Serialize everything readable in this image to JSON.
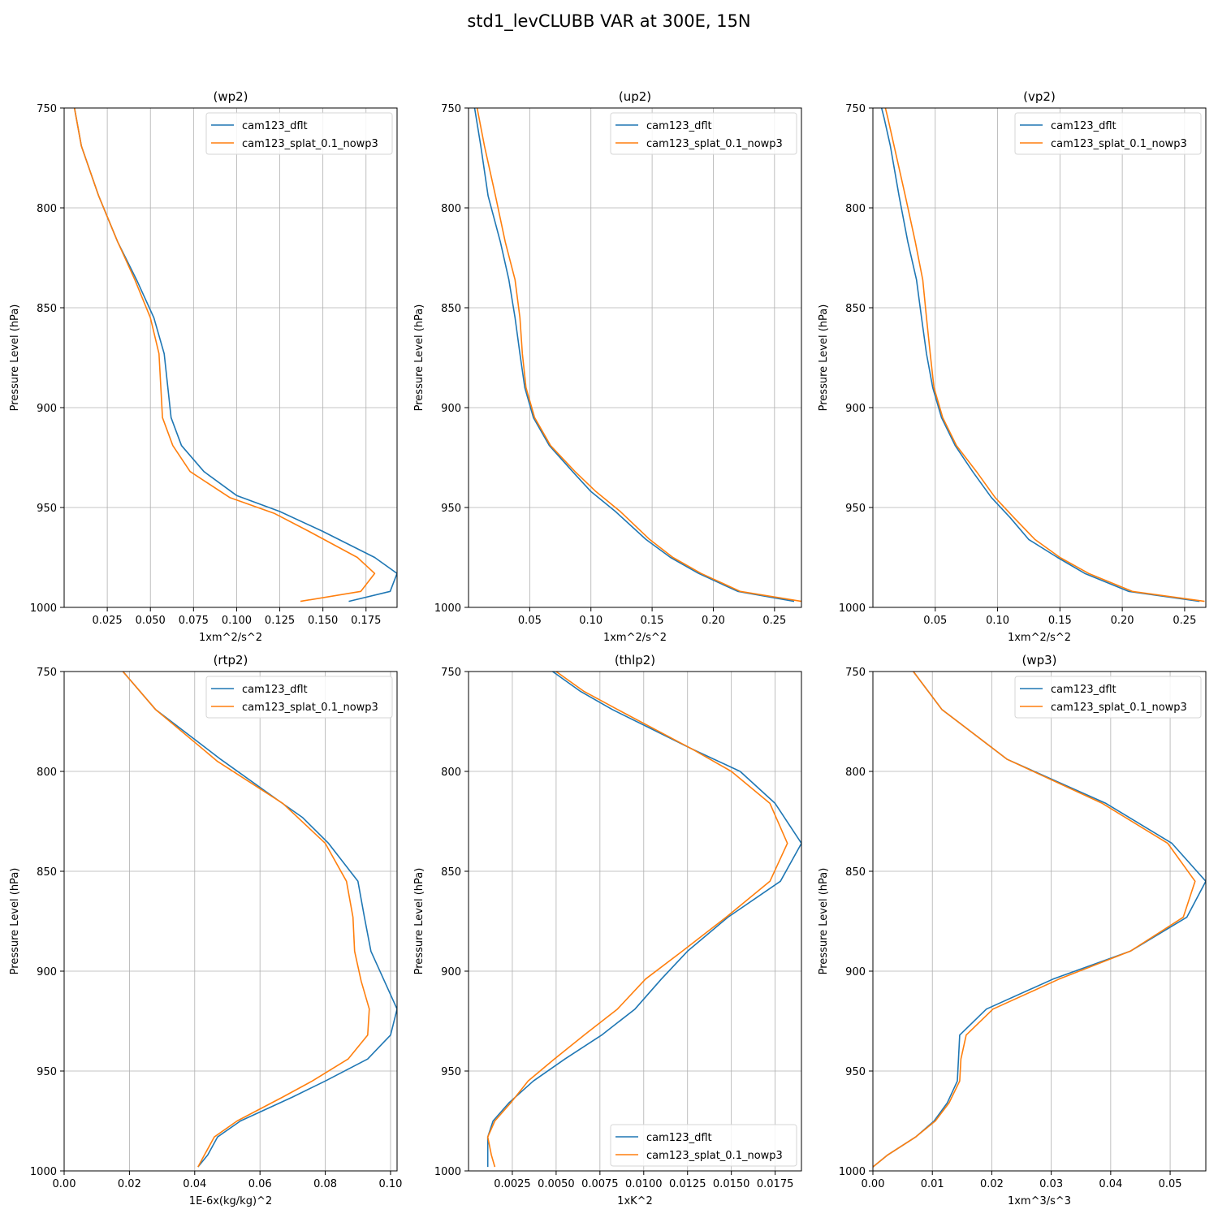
{
  "figure_title": "std1_levCLUBB VAR at 300E, 15N",
  "colors": {
    "cam123_dflt": "#1f77b4",
    "cam123_splat_0.1_nowp3": "#ff7f0e",
    "grid": "#b0b0b0"
  },
  "chart_data": [
    {
      "type": "line",
      "title": "(wp2)",
      "xlabel": "1xm^2/s^2",
      "ylabel": "Pressure Level (hPa)",
      "xlim": [
        0.0,
        0.193
      ],
      "ylim": [
        1000,
        750
      ],
      "xticks": [
        0.025,
        0.05,
        0.075,
        0.1,
        0.125,
        0.15,
        0.175
      ],
      "xtick_labels": [
        "0.025",
        "0.050",
        "0.075",
        "0.100",
        "0.125",
        "0.150",
        "0.175"
      ],
      "yticks": [
        750,
        800,
        850,
        900,
        950,
        1000
      ],
      "ytick_labels": [
        "750",
        "800",
        "850",
        "900",
        "950",
        "1000"
      ],
      "grid": true,
      "legend_position": "upper right",
      "series": [
        {
          "name": "cam123_dflt",
          "color": "#1f77b4",
          "x": [
            0.165,
            0.189,
            0.193,
            0.18,
            0.15,
            0.125,
            0.1,
            0.081,
            0.068,
            0.062,
            0.058,
            0.052,
            0.042,
            0.031,
            0.02,
            0.01,
            0.006
          ],
          "y": [
            997,
            992,
            983,
            975,
            962,
            952,
            944,
            932,
            919,
            905,
            873,
            855,
            836,
            817,
            794,
            769,
            750
          ]
        },
        {
          "name": "cam123_splat_0.1_nowp3",
          "color": "#ff7f0e",
          "x": [
            0.137,
            0.172,
            0.18,
            0.17,
            0.142,
            0.122,
            0.096,
            0.073,
            0.063,
            0.057,
            0.055,
            0.05,
            0.041,
            0.031,
            0.02,
            0.01,
            0.006
          ],
          "y": [
            997,
            992,
            983,
            975,
            962,
            953,
            945,
            932,
            919,
            905,
            873,
            855,
            836,
            817,
            794,
            769,
            750
          ]
        }
      ]
    },
    {
      "type": "line",
      "title": "(up2)",
      "xlabel": "1xm^2/s^2",
      "ylabel": "Pressure Level (hPa)",
      "xlim": [
        0.0,
        0.272
      ],
      "ylim": [
        1000,
        750
      ],
      "xticks": [
        0.05,
        0.1,
        0.15,
        0.2,
        0.25
      ],
      "xtick_labels": [
        "0.05",
        "0.10",
        "0.15",
        "0.20",
        "0.25"
      ],
      "yticks": [
        750,
        800,
        850,
        900,
        950,
        1000
      ],
      "ytick_labels": [
        "750",
        "800",
        "850",
        "900",
        "950",
        "1000"
      ],
      "grid": true,
      "legend_position": "upper right",
      "series": [
        {
          "name": "cam123_dflt",
          "color": "#1f77b4",
          "x": [
            0.266,
            0.22,
            0.188,
            0.165,
            0.145,
            0.12,
            0.1,
            0.085,
            0.066,
            0.053,
            0.046,
            0.042,
            0.038,
            0.033,
            0.026,
            0.016,
            0.01,
            0.005
          ],
          "y": [
            997,
            992,
            983,
            975,
            966,
            952,
            942,
            932,
            919,
            905,
            890,
            873,
            855,
            836,
            817,
            794,
            769,
            750
          ]
        },
        {
          "name": "cam123_splat_0.1_nowp3",
          "color": "#ff7f0e",
          "x": [
            0.272,
            0.222,
            0.19,
            0.167,
            0.148,
            0.124,
            0.104,
            0.087,
            0.067,
            0.054,
            0.047,
            0.044,
            0.042,
            0.038,
            0.03,
            0.022,
            0.013,
            0.007
          ],
          "y": [
            997,
            992,
            983,
            975,
            966,
            952,
            942,
            932,
            919,
            905,
            890,
            873,
            855,
            836,
            817,
            794,
            769,
            750
          ]
        }
      ]
    },
    {
      "type": "line",
      "title": "(vp2)",
      "xlabel": "1xm^2/s^2",
      "ylabel": "Pressure Level (hPa)",
      "xlim": [
        0.0,
        0.267
      ],
      "ylim": [
        1000,
        750
      ],
      "xticks": [
        0.05,
        0.1,
        0.15,
        0.2,
        0.25
      ],
      "xtick_labels": [
        "0.05",
        "0.10",
        "0.15",
        "0.20",
        "0.25"
      ],
      "yticks": [
        750,
        800,
        850,
        900,
        950,
        1000
      ],
      "ytick_labels": [
        "750",
        "800",
        "850",
        "900",
        "950",
        "1000"
      ],
      "grid": true,
      "legend_position": "upper right",
      "series": [
        {
          "name": "cam123_dflt",
          "color": "#1f77b4",
          "x": [
            0.262,
            0.205,
            0.17,
            0.148,
            0.125,
            0.11,
            0.095,
            0.08,
            0.066,
            0.055,
            0.048,
            0.043,
            0.039,
            0.035,
            0.028,
            0.021,
            0.014,
            0.009,
            0.007
          ],
          "y": [
            997,
            992,
            983,
            975,
            966,
            955,
            945,
            932,
            919,
            905,
            890,
            873,
            855,
            836,
            817,
            794,
            769,
            755,
            750
          ]
        },
        {
          "name": "cam123_splat_0.1_nowp3",
          "color": "#ff7f0e",
          "x": [
            0.266,
            0.208,
            0.173,
            0.15,
            0.13,
            0.113,
            0.098,
            0.083,
            0.067,
            0.056,
            0.049,
            0.046,
            0.043,
            0.04,
            0.034,
            0.026,
            0.017,
            0.012,
            0.01
          ],
          "y": [
            997,
            992,
            983,
            975,
            966,
            955,
            945,
            932,
            919,
            905,
            890,
            873,
            855,
            836,
            817,
            794,
            769,
            755,
            750
          ]
        }
      ]
    },
    {
      "type": "line",
      "title": "(rtp2)",
      "xlabel": "1E-6x(kg/kg)^2",
      "ylabel": "Pressure Level (hPa)",
      "xlim": [
        0.0,
        0.102
      ],
      "ylim": [
        1000,
        750
      ],
      "xticks": [
        0.0,
        0.02,
        0.04,
        0.06,
        0.08,
        0.1
      ],
      "xtick_labels": [
        "0.00",
        "0.02",
        "0.04",
        "0.06",
        "0.08",
        "0.10"
      ],
      "yticks": [
        750,
        800,
        850,
        900,
        950,
        1000
      ],
      "ytick_labels": [
        "750",
        "800",
        "850",
        "900",
        "950",
        "1000"
      ],
      "grid": true,
      "legend_position": "upper right",
      "series": [
        {
          "name": "cam123_dflt",
          "color": "#1f77b4",
          "x": [
            0.041,
            0.044,
            0.047,
            0.054,
            0.07,
            0.08,
            0.093,
            0.1,
            0.102,
            0.094,
            0.092,
            0.09,
            0.081,
            0.073,
            0.066,
            0.048,
            0.028,
            0.018
          ],
          "y": [
            998,
            992,
            983,
            975,
            963,
            955,
            944,
            932,
            919,
            890,
            873,
            855,
            836,
            823,
            815,
            794,
            769,
            750
          ]
        },
        {
          "name": "cam123_splat_0.1_nowp3",
          "color": "#ff7f0e",
          "x": [
            0.041,
            0.043,
            0.046,
            0.053,
            0.067,
            0.076,
            0.087,
            0.093,
            0.0935,
            0.091,
            0.089,
            0.0885,
            0.0865,
            0.08,
            0.067,
            0.047,
            0.028,
            0.018
          ],
          "y": [
            998,
            992,
            983,
            975,
            963,
            955,
            944,
            932,
            919,
            905,
            890,
            873,
            855,
            836,
            816,
            795,
            769,
            750
          ]
        }
      ]
    },
    {
      "type": "line",
      "title": "(thlp2)",
      "xlabel": "1xK^2",
      "ylabel": "Pressure Level (hPa)",
      "xlim": [
        0.0,
        0.019
      ],
      "ylim": [
        1000,
        750
      ],
      "xticks": [
        0.0025,
        0.005,
        0.0075,
        0.01,
        0.0125,
        0.015,
        0.0175
      ],
      "xtick_labels": [
        "0.0025",
        "0.0050",
        "0.0075",
        "0.0100",
        "0.0125",
        "0.0150",
        "0.0175"
      ],
      "yticks": [
        750,
        800,
        850,
        900,
        950,
        1000
      ],
      "ytick_labels": [
        "750",
        "800",
        "850",
        "900",
        "950",
        "1000"
      ],
      "grid": true,
      "legend_position": "lower right",
      "series": [
        {
          "name": "cam123_dflt",
          "color": "#1f77b4",
          "x": [
            0.0011,
            0.0011,
            0.0011,
            0.0014,
            0.0023,
            0.0037,
            0.0055,
            0.0076,
            0.0095,
            0.011,
            0.0125,
            0.0148,
            0.0178,
            0.019,
            0.0175,
            0.0155,
            0.0128,
            0.0082,
            0.0064,
            0.0048
          ],
          "y": [
            998,
            992,
            983,
            975,
            966,
            955,
            944,
            932,
            919,
            904,
            890,
            873,
            855,
            836,
            816,
            800,
            789,
            769,
            760,
            750
          ]
        },
        {
          "name": "cam123_splat_0.1_nowp3",
          "color": "#ff7f0e",
          "x": [
            0.0015,
            0.0013,
            0.0011,
            0.0015,
            0.0024,
            0.0034,
            0.0049,
            0.0066,
            0.0085,
            0.0101,
            0.0122,
            0.0147,
            0.0172,
            0.0182,
            0.0172,
            0.015,
            0.0128,
            0.0085,
            0.0066,
            0.005
          ],
          "y": [
            998,
            992,
            983,
            975,
            966,
            955,
            944,
            932,
            919,
            904,
            890,
            873,
            855,
            836,
            816,
            800,
            789,
            769,
            760,
            750
          ]
        }
      ]
    },
    {
      "type": "line",
      "title": "(wp3)",
      "xlabel": "1xm^3/s^3",
      "ylabel": "Pressure Level (hPa)",
      "xlim": [
        0.0,
        0.056
      ],
      "ylim": [
        1000,
        750
      ],
      "xticks": [
        0.0,
        0.01,
        0.02,
        0.03,
        0.04,
        0.05
      ],
      "xtick_labels": [
        "0.00",
        "0.01",
        "0.02",
        "0.03",
        "0.04",
        "0.05"
      ],
      "yticks": [
        750,
        800,
        850,
        900,
        950,
        1000
      ],
      "ytick_labels": [
        "750",
        "800",
        "850",
        "900",
        "950",
        "1000"
      ],
      "grid": true,
      "legend_position": "upper right",
      "series": [
        {
          "name": "cam123_dflt",
          "color": "#1f77b4",
          "x": [
            0.0,
            0.0025,
            0.0072,
            0.0103,
            0.0125,
            0.0142,
            0.0144,
            0.0146,
            0.0191,
            0.0303,
            0.0433,
            0.0528,
            0.056,
            0.0503,
            0.0392,
            0.0226,
            0.0116,
            0.0068
          ],
          "y": [
            998,
            992,
            983,
            975,
            966,
            955,
            944,
            932,
            919,
            904,
            890,
            873,
            855,
            836,
            816,
            794,
            769,
            750
          ]
        },
        {
          "name": "cam123_splat_0.1_nowp3",
          "color": "#ff7f0e",
          "x": [
            0.0,
            0.0025,
            0.0072,
            0.0105,
            0.0128,
            0.0146,
            0.0148,
            0.0157,
            0.0202,
            0.0313,
            0.0433,
            0.0522,
            0.0542,
            0.0496,
            0.0386,
            0.0226,
            0.0116,
            0.0068
          ],
          "y": [
            998,
            992,
            983,
            975,
            966,
            955,
            944,
            932,
            919,
            904,
            890,
            873,
            855,
            836,
            816,
            794,
            769,
            750
          ]
        }
      ]
    }
  ]
}
